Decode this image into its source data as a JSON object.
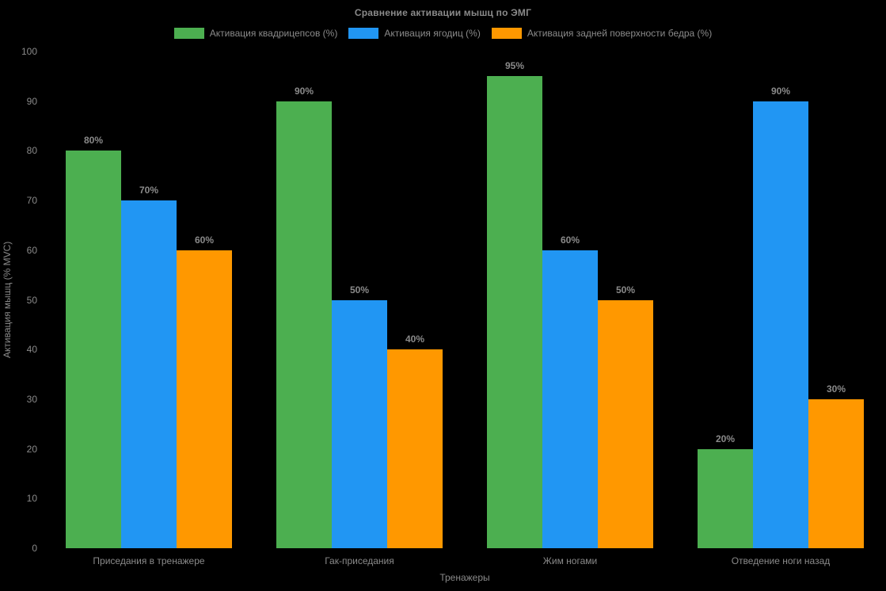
{
  "chart": {
    "background_color": "#000000",
    "text_color": "#8a8a8a"
  },
  "chart_data": {
    "type": "bar",
    "title": "Сравнение активации мышц по ЭМГ",
    "xlabel": "Тренажеры",
    "ylabel": "Активация мышц (% MVC)",
    "categories": [
      "Приседания в тренажере",
      "Гак-приседания",
      "Жим ногами",
      "Отведение ноги назад"
    ],
    "series": [
      {
        "name": "Активация квадрицепсов (%)",
        "color": "#4CAF50",
        "values": [
          80,
          90,
          95,
          20
        ],
        "labels": [
          "80%",
          "90%",
          "95%",
          "20%"
        ]
      },
      {
        "name": "Активация ягодиц (%)",
        "color": "#2196F3",
        "values": [
          70,
          50,
          60,
          90
        ],
        "labels": [
          "70%",
          "50%",
          "60%",
          "90%"
        ]
      },
      {
        "name": "Активация задней поверхности бедра (%)",
        "color": "#FF9800",
        "values": [
          60,
          40,
          50,
          30
        ],
        "labels": [
          "60%",
          "40%",
          "50%",
          "30%"
        ]
      }
    ],
    "value_label_suffix": "%",
    "ylim": [
      0,
      100
    ],
    "ytick_step": 10,
    "yticks": [
      0,
      10,
      20,
      30,
      40,
      50,
      60,
      70,
      80,
      90,
      100
    ],
    "grid": false,
    "legend_position": "top"
  }
}
